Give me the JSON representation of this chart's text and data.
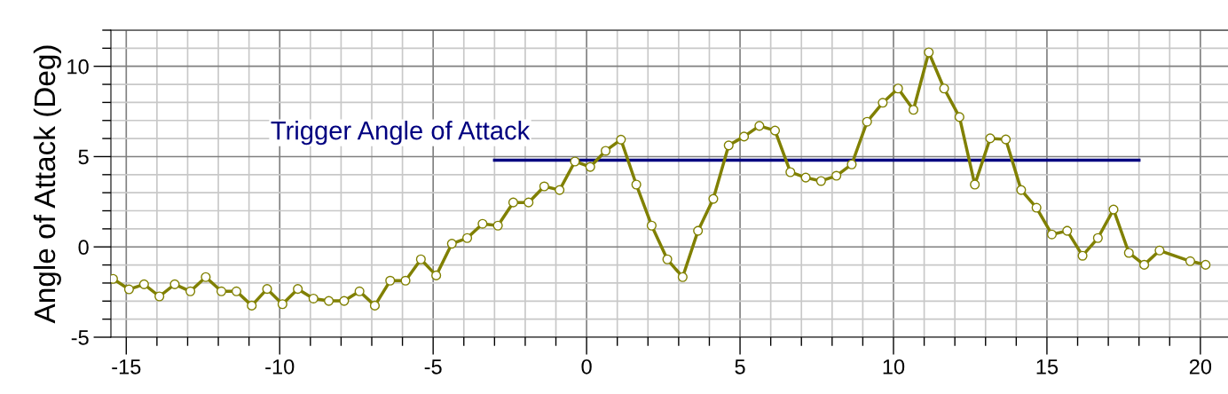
{
  "chart_data": {
    "type": "line",
    "ylabel": "Angle of Attack (Deg)",
    "xlim": [
      -15.5,
      20.9
    ],
    "ylim": [
      -5,
      12
    ],
    "xticks": [
      -15,
      -10,
      -5,
      0,
      5,
      10,
      15,
      20
    ],
    "yticks": [
      -5,
      0,
      5,
      10
    ],
    "grid": true,
    "line_style": "solid",
    "legend": false,
    "series": [
      {
        "color": "#808000",
        "marker": "circle",
        "x": [
          -15.43,
          -14.91,
          -14.42,
          -13.92,
          -13.42,
          -12.91,
          -12.41,
          -11.9,
          -11.41,
          -10.91,
          -10.41,
          -9.91,
          -9.41,
          -8.9,
          -8.4,
          -7.9,
          -7.4,
          -6.9,
          -6.4,
          -5.9,
          -5.4,
          -4.9,
          -4.39,
          -3.89,
          -3.39,
          -2.89,
          -2.39,
          -1.89,
          -1.38,
          -0.88,
          -0.38,
          0.12,
          0.62,
          1.12,
          1.62,
          2.12,
          2.63,
          3.13,
          3.63,
          4.13,
          4.63,
          5.13,
          5.63,
          6.14,
          6.64,
          7.14,
          7.64,
          8.14,
          8.64,
          9.14,
          9.65,
          10.15,
          10.65,
          11.15,
          11.65,
          12.15,
          12.65,
          13.15,
          13.66,
          14.16,
          14.66,
          15.16,
          15.66,
          16.16,
          16.66,
          17.17,
          17.67,
          18.17,
          18.67,
          19.67,
          20.17
        ],
        "values": [
          -1.77,
          -2.35,
          -2.07,
          -2.74,
          -2.07,
          -2.46,
          -1.67,
          -2.46,
          -2.46,
          -3.25,
          -2.33,
          -3.17,
          -2.33,
          -2.86,
          -2.99,
          -2.99,
          -2.46,
          -3.25,
          -1.87,
          -1.87,
          -0.69,
          -1.58,
          0.18,
          0.49,
          1.28,
          1.18,
          2.46,
          2.46,
          3.35,
          3.15,
          4.73,
          4.43,
          5.32,
          5.94,
          3.45,
          1.18,
          -0.69,
          -1.67,
          0.89,
          2.66,
          5.62,
          6.11,
          6.7,
          6.44,
          4.14,
          3.84,
          3.65,
          3.94,
          4.57,
          6.93,
          7.98,
          8.77,
          7.59,
          10.77,
          8.77,
          7.19,
          3.45,
          6.01,
          5.95,
          3.15,
          2.17,
          0.69,
          0.89,
          -0.49,
          0.49,
          2.07,
          -0.33,
          -0.99,
          -0.2,
          -0.79,
          -0.99
        ]
      },
      {
        "name": "Trigger Angle of Attack",
        "color": "#000080",
        "marker": "none",
        "x": [
          -3,
          18
        ],
        "values": [
          4.8,
          4.8
        ]
      }
    ]
  }
}
